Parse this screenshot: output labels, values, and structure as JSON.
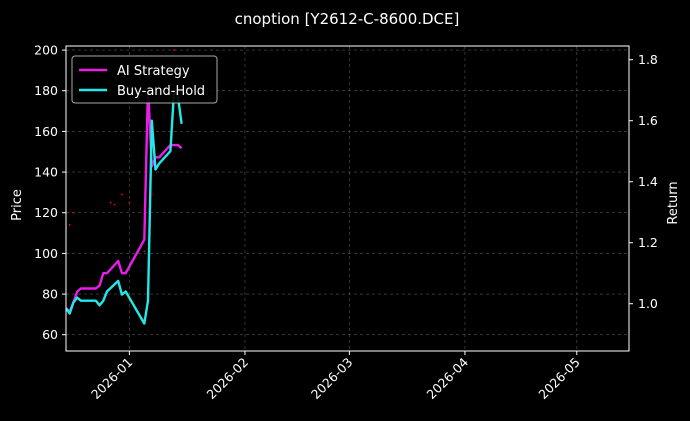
{
  "chart_data": {
    "type": "line",
    "title": "cnoption [Y2612-C-8600.DCE]",
    "ylabel": "Price",
    "y2label": "Return",
    "x_ticks": [
      "2026-01",
      "2026-02",
      "2026-03",
      "2026-04",
      "2026-05"
    ],
    "y_ticks": [
      60,
      80,
      100,
      120,
      140,
      160,
      180,
      200
    ],
    "y2_ticks": [
      "1.0",
      "1.2",
      "1.4",
      "1.6",
      "1.8"
    ],
    "xlim": [
      "2025-12-15",
      "2026-05-15"
    ],
    "ylim": [
      52,
      202
    ],
    "y2lim": [
      0.845,
      1.845
    ],
    "grid": true,
    "legend_position": "top-left",
    "colors": {
      "ai_strategy": "#e81ee8",
      "buy_and_hold": "#22e8e8",
      "price_marks": "#ff0000",
      "grid": "#555555"
    },
    "series": [
      {
        "name": "AI Strategy",
        "axis": "right",
        "color": "#e81ee8",
        "x": [
          "2025-12-15",
          "2025-12-16",
          "2025-12-17",
          "2025-12-18",
          "2025-12-19",
          "2025-12-22",
          "2025-12-23",
          "2025-12-24",
          "2025-12-25",
          "2025-12-26",
          "2025-12-29",
          "2025-12-30",
          "2025-12-31",
          "2026-01-05",
          "2026-01-06",
          "2026-01-07",
          "2026-01-08",
          "2026-01-09",
          "2026-01-12",
          "2026-01-13",
          "2026-01-14",
          "2026-01-15"
        ],
        "values": [
          0.985,
          0.975,
          1.005,
          1.04,
          1.05,
          1.05,
          1.05,
          1.06,
          1.1,
          1.1,
          1.14,
          1.1,
          1.1,
          1.21,
          1.71,
          1.45,
          1.48,
          1.48,
          1.52,
          1.52,
          1.52,
          1.51
        ]
      },
      {
        "name": "Buy-and-Hold",
        "axis": "right",
        "color": "#22e8e8",
        "x": [
          "2025-12-15",
          "2025-12-16",
          "2025-12-17",
          "2025-12-18",
          "2025-12-19",
          "2025-12-22",
          "2025-12-23",
          "2025-12-24",
          "2025-12-25",
          "2025-12-26",
          "2025-12-29",
          "2025-12-30",
          "2025-12-31",
          "2026-01-05",
          "2026-01-06",
          "2026-01-07",
          "2026-01-08",
          "2026-01-09",
          "2026-01-12",
          "2026-01-13",
          "2026-01-14",
          "2026-01-15"
        ],
        "values": [
          0.985,
          0.968,
          1.005,
          1.02,
          1.01,
          1.01,
          1.01,
          0.995,
          1.01,
          1.04,
          1.075,
          1.03,
          1.04,
          0.935,
          1.01,
          1.6,
          1.44,
          1.46,
          1.5,
          1.7,
          1.68,
          1.59
        ]
      },
      {
        "name": "price",
        "axis": "left",
        "style": "dots",
        "color": "#ff0000",
        "x": [
          "2025-12-16",
          "2025-12-17",
          "2025-12-27",
          "2025-12-28",
          "2025-12-30",
          "2026-01-01",
          "2026-01-05",
          "2026-01-07",
          "2026-01-13"
        ],
        "values": [
          114,
          120,
          125,
          124,
          129,
          125,
          101,
          129,
          200
        ]
      }
    ]
  }
}
